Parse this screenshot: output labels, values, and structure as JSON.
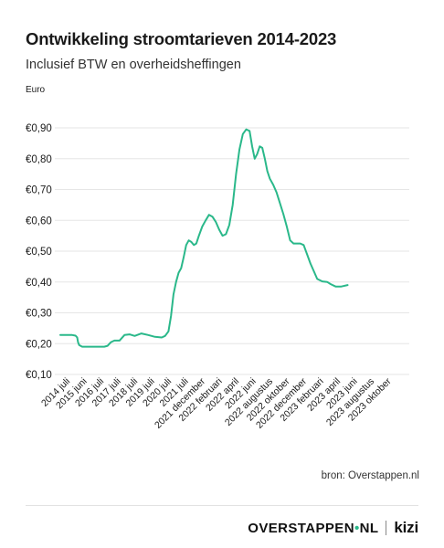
{
  "header": {
    "title": "Ontwikkeling stroomtarieven 2014-2023",
    "subtitle": "Inclusief BTW en overheidsheffingen"
  },
  "footer": {
    "source": "bron: Overstappen.nl",
    "brand_name": "OVERSTAPPEN",
    "brand_dot": "•",
    "brand_suffix": "NL",
    "brand_partner": "kizi"
  },
  "colors": {
    "line": "#2ab88a",
    "grid": "#e6e6e6",
    "text": "#1a1a1a"
  },
  "chart_data": {
    "type": "line",
    "title": "Ontwikkeling stroomtarieven 2014-2023",
    "subtitle": "Inclusief BTW en overheidsheffingen",
    "ylabel": "Euro",
    "xlabel": "",
    "ylim": [
      0.1,
      0.9
    ],
    "yticks": [
      0.1,
      0.2,
      0.3,
      0.4,
      0.5,
      0.6,
      0.7,
      0.8,
      0.9
    ],
    "ytick_labels": [
      "€0,10",
      "€0,20",
      "€0,30",
      "€0,40",
      "€0,50",
      "€0,60",
      "€0,70",
      "€0,80",
      "€0,90"
    ],
    "grid": true,
    "categories": [
      "2014 juli",
      "2015 juni",
      "2016 juli",
      "2017 juli",
      "2018 juli",
      "2019 juli",
      "2020 juli",
      "2021 juli",
      "2021 december",
      "2022 februari",
      "2022 april",
      "2022 juni",
      "2022 augustus",
      "2022 oktober",
      "2022 december",
      "2023 februari",
      "2023 april",
      "2023 juni",
      "2023 augustus",
      "2023 oktober"
    ],
    "series": [
      {
        "values": [
          [
            0.0,
            0.228
          ],
          [
            0.7,
            0.228
          ],
          [
            0.9,
            0.226
          ],
          [
            1.0,
            0.22
          ],
          [
            1.05,
            0.205
          ],
          [
            1.12,
            0.195
          ],
          [
            1.3,
            0.19
          ],
          [
            1.8,
            0.19
          ],
          [
            2.6,
            0.19
          ],
          [
            2.8,
            0.193
          ],
          [
            3.0,
            0.205
          ],
          [
            3.2,
            0.21
          ],
          [
            3.5,
            0.21
          ],
          [
            3.8,
            0.228
          ],
          [
            4.1,
            0.23
          ],
          [
            4.4,
            0.225
          ],
          [
            4.8,
            0.233
          ],
          [
            5.2,
            0.228
          ],
          [
            5.6,
            0.222
          ],
          [
            6.0,
            0.22
          ],
          [
            6.2,
            0.225
          ],
          [
            6.4,
            0.24
          ],
          [
            6.55,
            0.29
          ],
          [
            6.7,
            0.36
          ],
          [
            6.85,
            0.4
          ],
          [
            7.0,
            0.43
          ],
          [
            7.15,
            0.445
          ],
          [
            7.3,
            0.48
          ],
          [
            7.45,
            0.52
          ],
          [
            7.6,
            0.535
          ],
          [
            7.75,
            0.53
          ],
          [
            7.9,
            0.52
          ],
          [
            8.05,
            0.525
          ],
          [
            8.2,
            0.55
          ],
          [
            8.4,
            0.58
          ],
          [
            8.6,
            0.6
          ],
          [
            8.8,
            0.618
          ],
          [
            9.0,
            0.612
          ],
          [
            9.2,
            0.595
          ],
          [
            9.4,
            0.57
          ],
          [
            9.6,
            0.55
          ],
          [
            9.8,
            0.555
          ],
          [
            10.0,
            0.585
          ],
          [
            10.2,
            0.65
          ],
          [
            10.4,
            0.75
          ],
          [
            10.6,
            0.83
          ],
          [
            10.8,
            0.88
          ],
          [
            11.0,
            0.895
          ],
          [
            11.2,
            0.89
          ],
          [
            11.35,
            0.84
          ],
          [
            11.5,
            0.8
          ],
          [
            11.65,
            0.815
          ],
          [
            11.8,
            0.84
          ],
          [
            11.95,
            0.835
          ],
          [
            12.1,
            0.8
          ],
          [
            12.25,
            0.76
          ],
          [
            12.4,
            0.735
          ],
          [
            12.6,
            0.715
          ],
          [
            12.8,
            0.69
          ],
          [
            13.0,
            0.655
          ],
          [
            13.2,
            0.62
          ],
          [
            13.4,
            0.58
          ],
          [
            13.6,
            0.535
          ],
          [
            13.8,
            0.525
          ],
          [
            14.0,
            0.525
          ],
          [
            14.2,
            0.525
          ],
          [
            14.4,
            0.52
          ],
          [
            14.6,
            0.49
          ],
          [
            14.8,
            0.46
          ],
          [
            15.0,
            0.435
          ],
          [
            15.2,
            0.41
          ],
          [
            15.5,
            0.402
          ],
          [
            15.8,
            0.4
          ],
          [
            16.0,
            0.393
          ],
          [
            16.3,
            0.385
          ],
          [
            16.6,
            0.385
          ],
          [
            17.0,
            0.39
          ]
        ]
      }
    ]
  }
}
